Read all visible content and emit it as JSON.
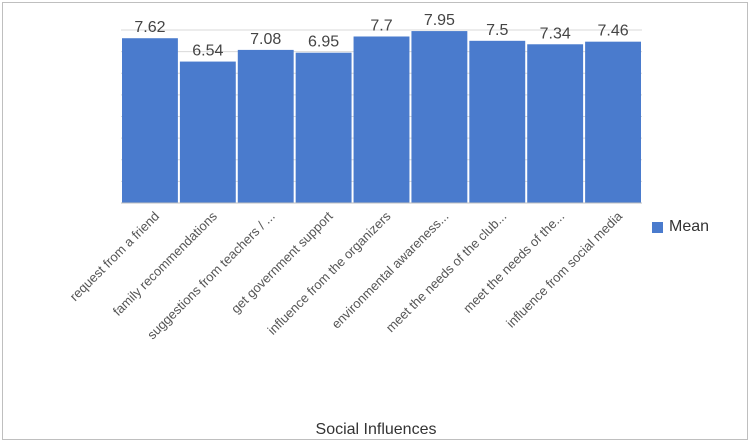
{
  "chart_data": {
    "type": "bar",
    "categories": [
      "request from a friend",
      "family recommendations",
      "suggestions from teachers / ...",
      "get government support",
      "influence from the organizers",
      "environmental awareness...",
      "meet the needs of the club...",
      "meet the needs of the...",
      "influence from social media"
    ],
    "series": [
      {
        "name": "Mean",
        "values": [
          7.62,
          6.54,
          7.08,
          6.95,
          7.7,
          7.95,
          7.5,
          7.34,
          7.46
        ]
      }
    ],
    "data_labels": [
      "7.62",
      "6.54",
      "7.08",
      "6.95",
      "7.7",
      "7.95",
      "7.5",
      "7.34",
      "7.46"
    ],
    "xlabel": "Social Influences",
    "ylabel": "",
    "ylim": [
      0,
      8
    ],
    "grid": true,
    "legend_position": "right",
    "colors": {
      "bar": "#4a7bcd",
      "grid": "#d9d9d9",
      "text": "#444444"
    }
  }
}
